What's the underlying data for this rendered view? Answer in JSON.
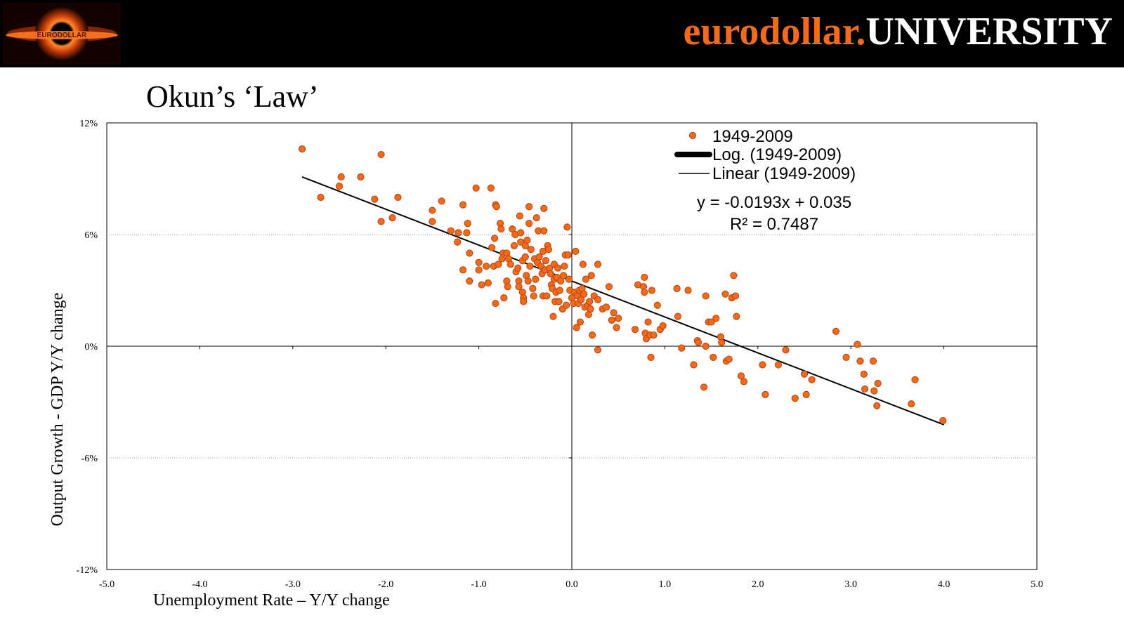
{
  "header": {
    "brand_orange": "eurodollar.",
    "brand_white": "UNIVERSITY",
    "logo_text": "EURODOLLAR",
    "colors": {
      "background": "#000000",
      "accent": "#f26a1b",
      "text": "#ffffff"
    }
  },
  "slide": {
    "title": "Okun’s ‘Law’"
  },
  "chart_data": {
    "type": "scatter",
    "title": "Okun’s ‘Law’",
    "xlabel": "Unemployment Rate – Y/Y change",
    "ylabel": "Output Growth - GDP Y/Y change",
    "xlim": [
      -5.0,
      5.0
    ],
    "ylim": [
      -12,
      12
    ],
    "x_ticks": [
      -5,
      -4,
      -3,
      -2,
      -1,
      0,
      1,
      2,
      3,
      4,
      5
    ],
    "x_tick_labels": [
      "-5.0",
      "-4.0",
      "-3.0",
      "-2.0",
      "-1.0",
      "0.0",
      "1.0",
      "2.0",
      "3.0",
      "4.0",
      "5.0"
    ],
    "y_ticks": [
      12,
      6,
      0,
      -6,
      -12
    ],
    "y_tick_labels": [
      "12%",
      "6%",
      "0%",
      "-6%",
      "-12%"
    ],
    "grid": "horizontal dotted",
    "legend_position": "top-right",
    "legend": [
      {
        "label": "1949-2009",
        "kind": "marker"
      },
      {
        "label": "Log. (1949-2009)",
        "kind": "thick-line"
      },
      {
        "label": "Linear (1949-2009)",
        "kind": "line"
      }
    ],
    "annotations": {
      "equation": "y = -0.0193x + 0.035",
      "r_squared": "R² = 0.7487"
    },
    "trendline": {
      "type": "linear",
      "slope": -1.93,
      "intercept": 3.5,
      "x_range": [
        -2.9,
        4.0
      ]
    },
    "marker_color": "#f26a1b",
    "marker_edge": "#b8440c",
    "series": [
      {
        "name": "1949-2009",
        "points": [
          [
            -2.9,
            10.6
          ],
          [
            -2.7,
            8.0
          ],
          [
            -2.5,
            8.6
          ],
          [
            -2.48,
            9.1
          ],
          [
            -2.27,
            9.1
          ],
          [
            -2.12,
            7.9
          ],
          [
            -2.05,
            6.7
          ],
          [
            -2.05,
            10.3
          ],
          [
            -1.93,
            6.9
          ],
          [
            -1.87,
            8.0
          ],
          [
            -1.5,
            7.3
          ],
          [
            -1.5,
            6.7
          ],
          [
            -1.4,
            7.8
          ],
          [
            -1.3,
            6.2
          ],
          [
            -1.23,
            5.6
          ],
          [
            -1.22,
            6.1
          ],
          [
            -1.17,
            7.6
          ],
          [
            -1.17,
            4.1
          ],
          [
            -1.13,
            6.1
          ],
          [
            -1.12,
            6.6
          ],
          [
            -1.1,
            5.0
          ],
          [
            -1.1,
            3.5
          ],
          [
            -1.03,
            8.5
          ],
          [
            -1.0,
            4.5
          ],
          [
            -1.0,
            4.1
          ],
          [
            -0.97,
            3.3
          ],
          [
            -0.92,
            4.3
          ],
          [
            -0.9,
            3.4
          ],
          [
            -0.87,
            8.5
          ],
          [
            -0.86,
            5.3
          ],
          [
            -0.84,
            4.3
          ],
          [
            -0.83,
            5.8
          ],
          [
            -0.82,
            2.3
          ],
          [
            -0.82,
            7.6
          ],
          [
            -0.81,
            7.5
          ],
          [
            -0.79,
            4.4
          ],
          [
            -0.77,
            6.6
          ],
          [
            -0.76,
            6.3
          ],
          [
            -0.75,
            4.7
          ],
          [
            -0.74,
            5.0
          ],
          [
            -0.73,
            2.6
          ],
          [
            -0.7,
            5.0
          ],
          [
            -0.7,
            3.5
          ],
          [
            -0.69,
            3.2
          ],
          [
            -0.68,
            4.7
          ],
          [
            -0.66,
            4.4
          ],
          [
            -0.64,
            6.3
          ],
          [
            -0.62,
            5.4
          ],
          [
            -0.61,
            6.0
          ],
          [
            -0.6,
            4.0
          ],
          [
            -0.58,
            4.2
          ],
          [
            -0.57,
            3.5
          ],
          [
            -0.57,
            3.2
          ],
          [
            -0.56,
            7.0
          ],
          [
            -0.55,
            5.6
          ],
          [
            -0.55,
            6.1
          ],
          [
            -0.53,
            4.6
          ],
          [
            -0.53,
            2.9
          ],
          [
            -0.52,
            2.6
          ],
          [
            -0.52,
            2.4
          ],
          [
            -0.5,
            5.4
          ],
          [
            -0.5,
            4.8
          ],
          [
            -0.49,
            3.8
          ],
          [
            -0.48,
            5.7
          ],
          [
            -0.47,
            3.5
          ],
          [
            -0.46,
            7.5
          ],
          [
            -0.46,
            6.6
          ],
          [
            -0.45,
            4.3
          ],
          [
            -0.44,
            5.2
          ],
          [
            -0.42,
            3.1
          ],
          [
            -0.41,
            2.7
          ],
          [
            -0.4,
            4.7
          ],
          [
            -0.39,
            3.6
          ],
          [
            -0.38,
            6.9
          ],
          [
            -0.37,
            4.5
          ],
          [
            -0.36,
            6.2
          ],
          [
            -0.35,
            4.8
          ],
          [
            -0.33,
            4.3
          ],
          [
            -0.32,
            3.9
          ],
          [
            -0.31,
            2.7
          ],
          [
            -0.31,
            5.1
          ],
          [
            -0.3,
            6.2
          ],
          [
            -0.3,
            7.4
          ],
          [
            -0.29,
            4.1
          ],
          [
            -0.28,
            4.6
          ],
          [
            -0.27,
            2.7
          ],
          [
            -0.26,
            5.4
          ],
          [
            -0.25,
            5.2
          ],
          [
            -0.24,
            4.2
          ],
          [
            -0.23,
            3.9
          ],
          [
            -0.22,
            3.3
          ],
          [
            -0.21,
            3.1
          ],
          [
            -0.2,
            1.6
          ],
          [
            -0.19,
            4.4
          ],
          [
            -0.19,
            3.6
          ],
          [
            -0.18,
            2.4
          ],
          [
            -0.17,
            2.9
          ],
          [
            -0.16,
            3.7
          ],
          [
            -0.15,
            4.2
          ],
          [
            -0.14,
            2.4
          ],
          [
            -0.13,
            3.0
          ],
          [
            -0.12,
            3.5
          ],
          [
            -0.1,
            2.0
          ],
          [
            -0.09,
            3.8
          ],
          [
            -0.08,
            4.3
          ],
          [
            -0.07,
            4.9
          ],
          [
            -0.06,
            2.2
          ],
          [
            -0.05,
            6.4
          ],
          [
            -0.04,
            4.9
          ],
          [
            -0.03,
            3.6
          ],
          [
            -0.02,
            3.0
          ],
          [
            0.0,
            2.6
          ],
          [
            0.02,
            2.3
          ],
          [
            0.03,
            2.9
          ],
          [
            0.04,
            5.1
          ],
          [
            0.05,
            1.0
          ],
          [
            0.06,
            2.7
          ],
          [
            0.07,
            2.3
          ],
          [
            0.08,
            3.0
          ],
          [
            0.09,
            1.3
          ],
          [
            0.1,
            2.5
          ],
          [
            0.11,
            3.1
          ],
          [
            0.12,
            4.4
          ],
          [
            0.13,
            2.8
          ],
          [
            0.14,
            2.1
          ],
          [
            0.15,
            3.6
          ],
          [
            0.17,
            2.2
          ],
          [
            0.18,
            1.7
          ],
          [
            0.19,
            2.4
          ],
          [
            0.2,
            2.0
          ],
          [
            0.21,
            3.8
          ],
          [
            0.22,
            0.6
          ],
          [
            0.24,
            2.7
          ],
          [
            0.28,
            2.5
          ],
          [
            0.28,
            -0.2
          ],
          [
            0.28,
            4.4
          ],
          [
            0.33,
            2.0
          ],
          [
            0.37,
            2.1
          ],
          [
            0.4,
            3.2
          ],
          [
            0.43,
            1.4
          ],
          [
            0.45,
            1.8
          ],
          [
            0.48,
            1.0
          ],
          [
            0.5,
            1.5
          ],
          [
            0.68,
            0.9
          ],
          [
            0.71,
            3.3
          ],
          [
            0.77,
            3.2
          ],
          [
            0.78,
            2.9
          ],
          [
            0.78,
            3.7
          ],
          [
            0.79,
            0.7
          ],
          [
            0.8,
            0.4
          ],
          [
            0.82,
            1.3
          ],
          [
            0.84,
            0.6
          ],
          [
            0.85,
            -0.6
          ],
          [
            0.86,
            3.0
          ],
          [
            0.88,
            0.6
          ],
          [
            0.92,
            2.2
          ],
          [
            0.95,
            0.9
          ],
          [
            0.98,
            1.1
          ],
          [
            1.13,
            3.1
          ],
          [
            1.14,
            1.6
          ],
          [
            1.18,
            -0.1
          ],
          [
            1.25,
            3.0
          ],
          [
            1.31,
            -1.0
          ],
          [
            1.35,
            0.3
          ],
          [
            1.36,
            0.2
          ],
          [
            1.42,
            -2.2
          ],
          [
            1.44,
            2.7
          ],
          [
            1.44,
            0.0
          ],
          [
            1.47,
            1.3
          ],
          [
            1.5,
            1.3
          ],
          [
            1.52,
            -0.6
          ],
          [
            1.55,
            1.5
          ],
          [
            1.6,
            0.5
          ],
          [
            1.61,
            0.2
          ],
          [
            1.65,
            2.8
          ],
          [
            1.66,
            -0.8
          ],
          [
            1.69,
            -0.7
          ],
          [
            1.72,
            2.6
          ],
          [
            1.74,
            3.8
          ],
          [
            1.76,
            2.7
          ],
          [
            1.77,
            1.6
          ],
          [
            1.82,
            -1.6
          ],
          [
            1.85,
            -1.9
          ],
          [
            2.05,
            -1.0
          ],
          [
            2.08,
            -2.6
          ],
          [
            2.22,
            -1.0
          ],
          [
            2.3,
            -0.2
          ],
          [
            2.4,
            -2.8
          ],
          [
            2.5,
            -1.5
          ],
          [
            2.52,
            -2.6
          ],
          [
            2.58,
            -1.8
          ],
          [
            2.84,
            0.8
          ],
          [
            2.95,
            -0.6
          ],
          [
            3.07,
            0.1
          ],
          [
            3.1,
            -0.8
          ],
          [
            3.14,
            -1.5
          ],
          [
            3.15,
            -2.3
          ],
          [
            3.24,
            -0.8
          ],
          [
            3.25,
            -2.4
          ],
          [
            3.28,
            -3.2
          ],
          [
            3.29,
            -2.0
          ],
          [
            3.65,
            -3.1
          ],
          [
            3.69,
            -1.8
          ],
          [
            3.99,
            -4.0
          ]
        ]
      }
    ]
  }
}
